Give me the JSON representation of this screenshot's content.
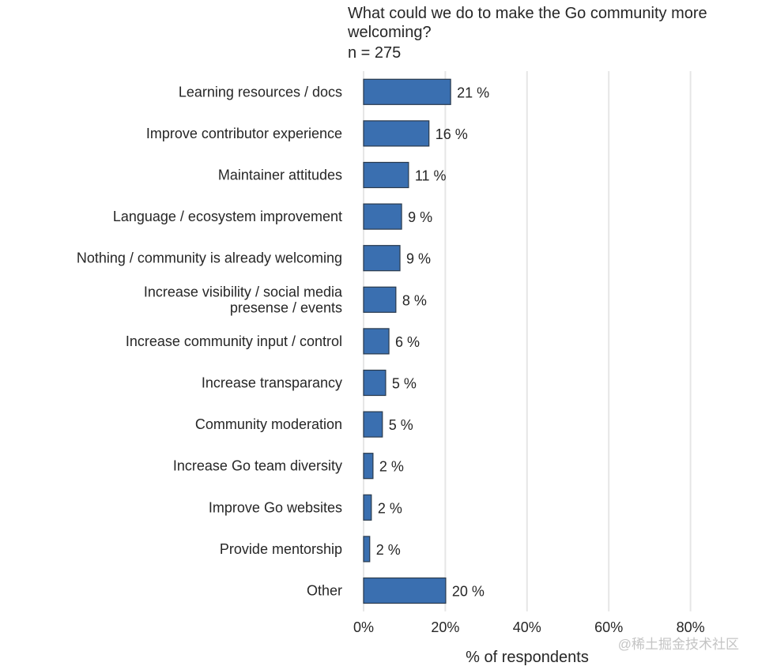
{
  "chart_data": {
    "type": "bar",
    "orientation": "horizontal",
    "title": "What could we do to make the Go community more welcoming?",
    "subtitle": "n = 275",
    "xlabel": "% of respondents",
    "ylabel": "",
    "xlim": [
      0,
      80
    ],
    "xticks": [
      "0%",
      "20%",
      "40%",
      "60%",
      "80%"
    ],
    "xtick_values": [
      0,
      20,
      40,
      60,
      80
    ],
    "grid": "vertical",
    "categories": [
      [
        "Learning resources / docs"
      ],
      [
        "Improve contributor experience"
      ],
      [
        "Maintainer attitudes"
      ],
      [
        "Language / ecosystem improvement"
      ],
      [
        "Nothing / community is already welcoming"
      ],
      [
        "Increase visibility / social media",
        "presense / events"
      ],
      [
        "Increase community input / control"
      ],
      [
        "Increase transparancy"
      ],
      [
        "Community moderation"
      ],
      [
        "Increase Go team diversity"
      ],
      [
        "Improve Go websites"
      ],
      [
        "Provide mentorship"
      ],
      [
        "Other"
      ]
    ],
    "values": [
      21.3,
      16.0,
      11.0,
      9.3,
      8.9,
      7.9,
      6.2,
      5.4,
      4.6,
      2.3,
      1.9,
      1.5,
      20.1
    ],
    "labels": [
      "21 %",
      "16 %",
      "11 %",
      "9 %",
      "9 %",
      "8 %",
      "6 %",
      "5 %",
      "5 %",
      "2 %",
      "2 %",
      "2 %",
      "20 %"
    ],
    "colors": {
      "bar": "#3a6fb0",
      "bar_edge": "#2a3a4c",
      "grid": "#e6e6e6"
    }
  },
  "watermark": "@稀土掘金技术社区"
}
